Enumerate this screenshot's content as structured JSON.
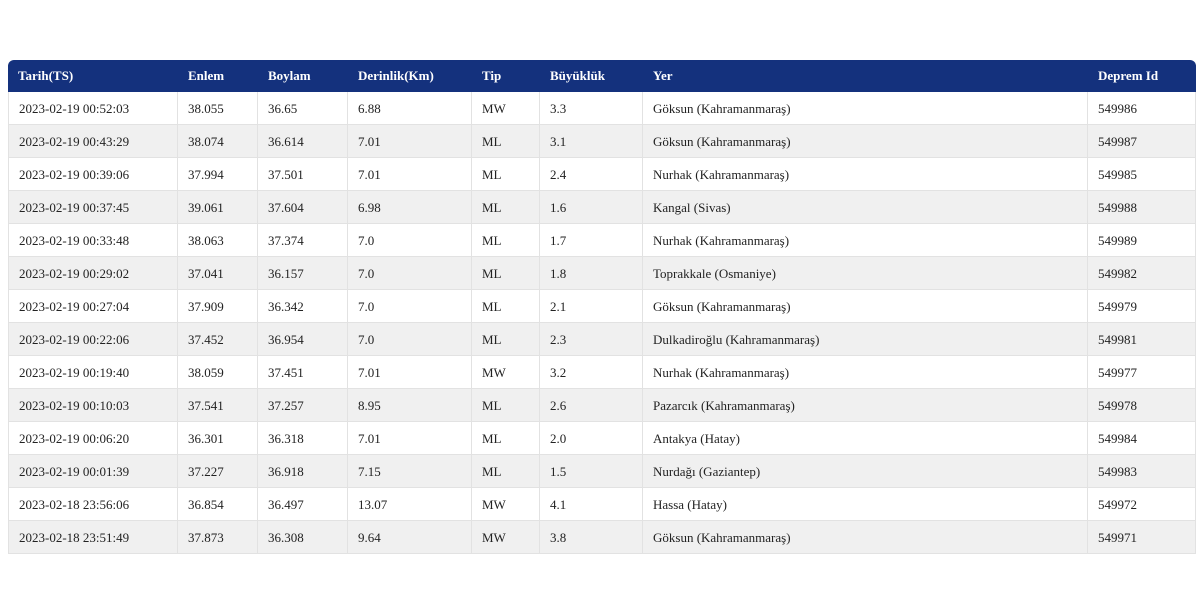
{
  "table": {
    "name": "earthquake-list",
    "columns": [
      "Tarih(TS)",
      "Enlem",
      "Boylam",
      "Derinlik(Km)",
      "Tip",
      "Büyüklük",
      "Yer",
      "Deprem Id"
    ],
    "rows": [
      [
        "2023-02-19 00:52:03",
        "38.055",
        "36.65",
        "6.88",
        "MW",
        "3.3",
        "Göksun (Kahramanmaraş)",
        "549986"
      ],
      [
        "2023-02-19 00:43:29",
        "38.074",
        "36.614",
        "7.01",
        "ML",
        "3.1",
        "Göksun (Kahramanmaraş)",
        "549987"
      ],
      [
        "2023-02-19 00:39:06",
        "37.994",
        "37.501",
        "7.01",
        "ML",
        "2.4",
        "Nurhak (Kahramanmaraş)",
        "549985"
      ],
      [
        "2023-02-19 00:37:45",
        "39.061",
        "37.604",
        "6.98",
        "ML",
        "1.6",
        "Kangal (Sivas)",
        "549988"
      ],
      [
        "2023-02-19 00:33:48",
        "38.063",
        "37.374",
        "7.0",
        "ML",
        "1.7",
        "Nurhak (Kahramanmaraş)",
        "549989"
      ],
      [
        "2023-02-19 00:29:02",
        "37.041",
        "36.157",
        "7.0",
        "ML",
        "1.8",
        "Toprakkale (Osmaniye)",
        "549982"
      ],
      [
        "2023-02-19 00:27:04",
        "37.909",
        "36.342",
        "7.0",
        "ML",
        "2.1",
        "Göksun (Kahramanmaraş)",
        "549979"
      ],
      [
        "2023-02-19 00:22:06",
        "37.452",
        "36.954",
        "7.0",
        "ML",
        "2.3",
        "Dulkadiroğlu (Kahramanmaraş)",
        "549981"
      ],
      [
        "2023-02-19 00:19:40",
        "38.059",
        "37.451",
        "7.01",
        "MW",
        "3.2",
        "Nurhak (Kahramanmaraş)",
        "549977"
      ],
      [
        "2023-02-19 00:10:03",
        "37.541",
        "37.257",
        "8.95",
        "ML",
        "2.6",
        "Pazarcık (Kahramanmaraş)",
        "549978"
      ],
      [
        "2023-02-19 00:06:20",
        "36.301",
        "36.318",
        "7.01",
        "ML",
        "2.0",
        "Antakya (Hatay)",
        "549984"
      ],
      [
        "2023-02-19 00:01:39",
        "37.227",
        "36.918",
        "7.15",
        "ML",
        "1.5",
        "Nurdağı (Gaziantep)",
        "549983"
      ],
      [
        "2023-02-18 23:56:06",
        "36.854",
        "36.497",
        "13.07",
        "MW",
        "4.1",
        "Hassa (Hatay)",
        "549972"
      ],
      [
        "2023-02-18 23:51:49",
        "37.873",
        "36.308",
        "9.64",
        "MW",
        "3.8",
        "Göksun (Kahramanmaraş)",
        "549971"
      ]
    ],
    "colors": {
      "header_bg": "#14317d",
      "header_text": "#ffffff",
      "row_bg": "#ffffff",
      "row_alt_bg": "#f0f0f0",
      "border": "#e2e2e2",
      "cell_text": "#222222"
    }
  }
}
